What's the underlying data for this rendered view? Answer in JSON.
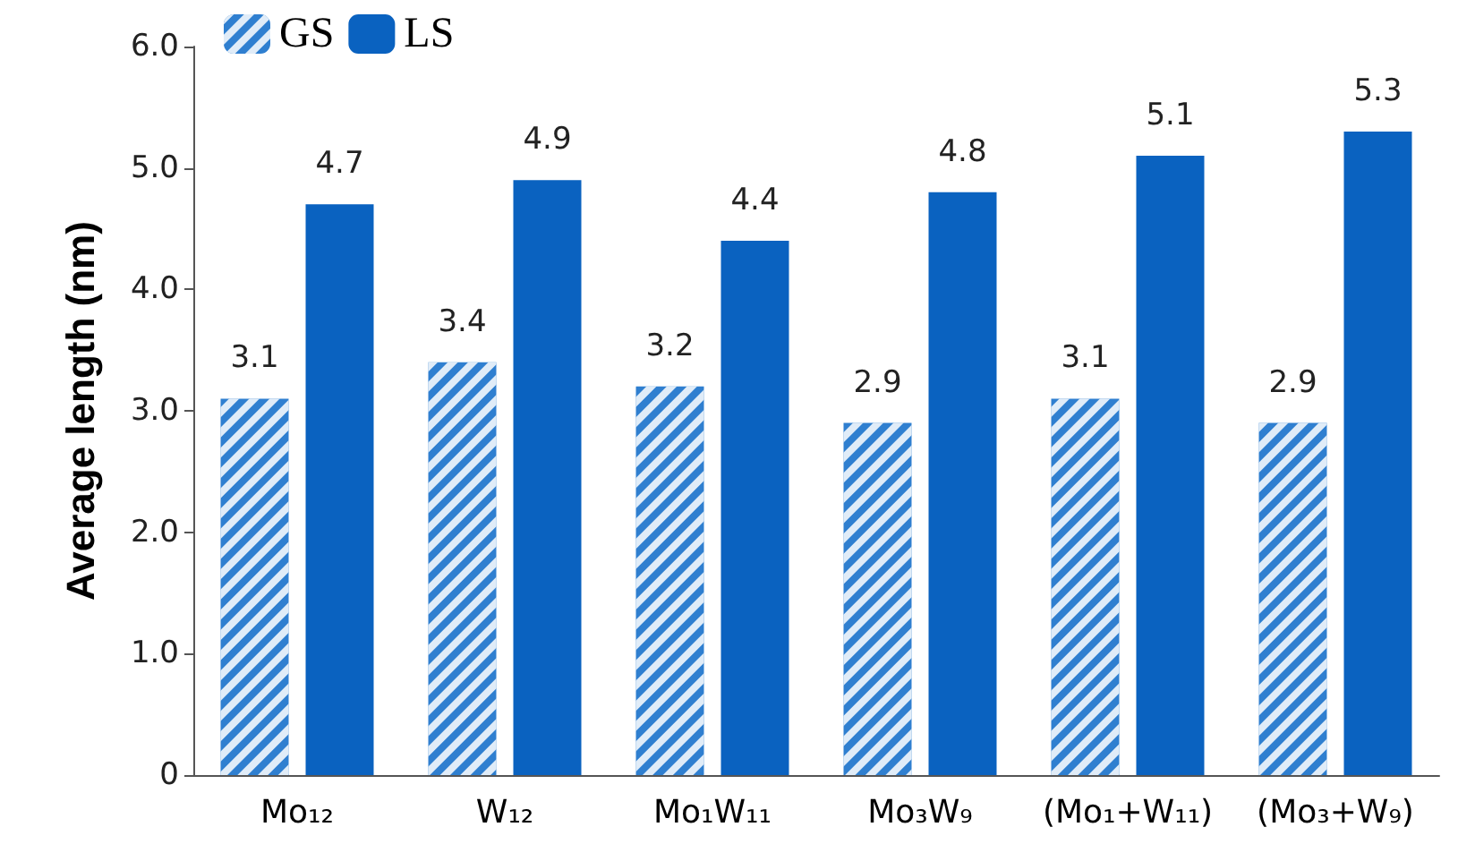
{
  "chart_data": {
    "type": "bar",
    "ylabel": "Average length (nm)",
    "categories": [
      "Mo₁₂",
      "W₁₂",
      "Mo₁W₁₁",
      "Mo₃W₉",
      "(Mo₁+W₁₁)",
      "(Mo₃+W₉)"
    ],
    "series": [
      {
        "name": "GS",
        "color": "#2f7fd0",
        "values": [
          3.1,
          3.4,
          3.2,
          2.9,
          3.1,
          2.9
        ]
      },
      {
        "name": "LS",
        "color": "#0a62c0",
        "values": [
          4.7,
          4.9,
          4.4,
          4.8,
          5.1,
          5.3
        ]
      }
    ],
    "ylim": [
      0,
      6
    ],
    "yticks": [
      0,
      {
        "value": 1,
        "label": "1.0"
      },
      {
        "value": 2,
        "label": "2.0"
      },
      {
        "value": 3,
        "label": "3.0"
      },
      {
        "value": 4,
        "label": "4.0"
      },
      {
        "value": 5,
        "label": "5.0"
      },
      {
        "value": 6,
        "label": "6.0"
      }
    ],
    "data_labels": true,
    "grid": false,
    "legend": "top left"
  }
}
